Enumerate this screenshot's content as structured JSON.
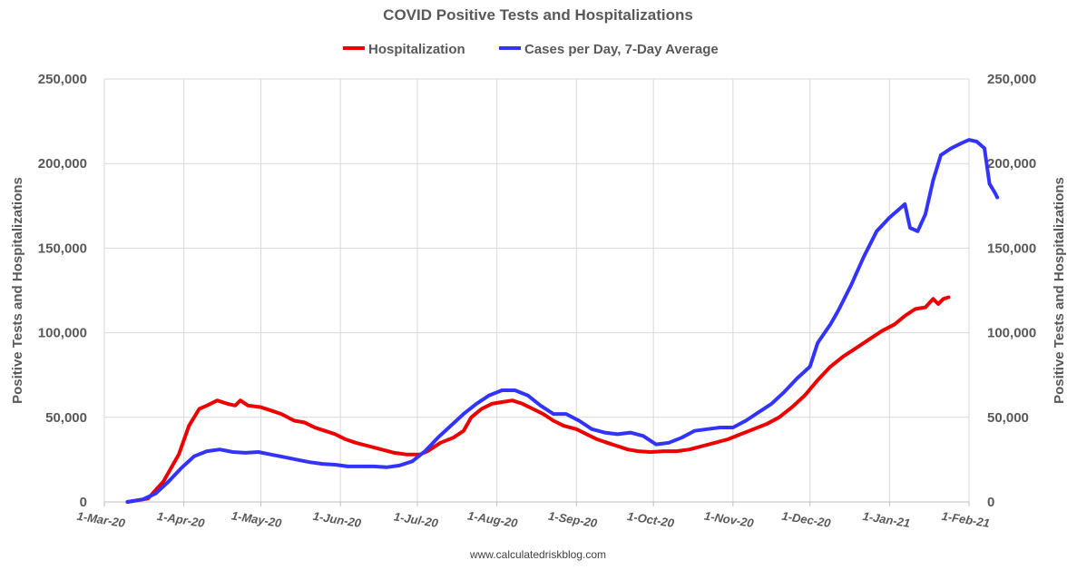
{
  "chart_data": {
    "type": "line",
    "title": "COVID Positive Tests and Hospitalizations",
    "ylabel_left": "Positive Tests and Hospitalizations",
    "ylabel_right": "Positive Tests and Hospitalizations",
    "ylim": [
      0,
      250000
    ],
    "y_ticks": [
      0,
      50000,
      100000,
      150000,
      200000,
      250000
    ],
    "y_tick_labels": [
      "0",
      "50,000",
      "100,000",
      "150,000",
      "200,000",
      "250,000"
    ],
    "x_range": [
      "2020-03-01",
      "2021-02-01"
    ],
    "x_tick_dates": [
      "2020-03-01",
      "2020-04-01",
      "2020-05-01",
      "2020-06-01",
      "2020-07-01",
      "2020-08-01",
      "2020-09-01",
      "2020-10-01",
      "2020-11-01",
      "2020-12-01",
      "2021-01-01",
      "2021-02-01"
    ],
    "x_tick_labels": [
      "1-Mar-20",
      "1-Apr-20",
      "1-May-20",
      "1-Jun-20",
      "1-Jul-20",
      "1-Aug-20",
      "1-Sep-20",
      "1-Oct-20",
      "1-Nov-20",
      "1-Dec-20",
      "1-Jan-21",
      "1-Feb-21"
    ],
    "grid": true,
    "legend_position": "top-center",
    "series": [
      {
        "name": "Hospitalization",
        "color": "#ee0000",
        "points": [
          [
            "2020-03-10",
            0
          ],
          [
            "2020-03-18",
            2000
          ],
          [
            "2020-03-24",
            12000
          ],
          [
            "2020-03-30",
            28000
          ],
          [
            "2020-04-03",
            45000
          ],
          [
            "2020-04-07",
            55000
          ],
          [
            "2020-04-10",
            57000
          ],
          [
            "2020-04-14",
            60000
          ],
          [
            "2020-04-18",
            58000
          ],
          [
            "2020-04-21",
            57000
          ],
          [
            "2020-04-23",
            60000
          ],
          [
            "2020-04-26",
            57000
          ],
          [
            "2020-05-01",
            56000
          ],
          [
            "2020-05-05",
            54000
          ],
          [
            "2020-05-09",
            52000
          ],
          [
            "2020-05-14",
            48000
          ],
          [
            "2020-05-18",
            47000
          ],
          [
            "2020-05-22",
            44000
          ],
          [
            "2020-05-26",
            42000
          ],
          [
            "2020-05-30",
            40000
          ],
          [
            "2020-06-03",
            37000
          ],
          [
            "2020-06-07",
            35000
          ],
          [
            "2020-06-12",
            33000
          ],
          [
            "2020-06-17",
            31000
          ],
          [
            "2020-06-22",
            29000
          ],
          [
            "2020-06-27",
            28000
          ],
          [
            "2020-07-02",
            28000
          ],
          [
            "2020-07-05",
            30000
          ],
          [
            "2020-07-10",
            35000
          ],
          [
            "2020-07-15",
            38000
          ],
          [
            "2020-07-19",
            42000
          ],
          [
            "2020-07-22",
            50000
          ],
          [
            "2020-07-26",
            55000
          ],
          [
            "2020-07-30",
            58000
          ],
          [
            "2020-08-03",
            59000
          ],
          [
            "2020-08-07",
            60000
          ],
          [
            "2020-08-11",
            58000
          ],
          [
            "2020-08-15",
            55000
          ],
          [
            "2020-08-19",
            52000
          ],
          [
            "2020-08-23",
            48000
          ],
          [
            "2020-08-27",
            45000
          ],
          [
            "2020-09-01",
            43000
          ],
          [
            "2020-09-05",
            40000
          ],
          [
            "2020-09-09",
            37000
          ],
          [
            "2020-09-13",
            35000
          ],
          [
            "2020-09-17",
            33000
          ],
          [
            "2020-09-21",
            31000
          ],
          [
            "2020-09-25",
            30000
          ],
          [
            "2020-09-30",
            29500
          ],
          [
            "2020-10-05",
            30000
          ],
          [
            "2020-10-10",
            30000
          ],
          [
            "2020-10-15",
            31000
          ],
          [
            "2020-10-20",
            33000
          ],
          [
            "2020-10-25",
            35000
          ],
          [
            "2020-10-30",
            37000
          ],
          [
            "2020-11-04",
            40000
          ],
          [
            "2020-11-09",
            43000
          ],
          [
            "2020-11-14",
            46000
          ],
          [
            "2020-11-19",
            50000
          ],
          [
            "2020-11-24",
            56000
          ],
          [
            "2020-11-29",
            63000
          ],
          [
            "2020-12-04",
            72000
          ],
          [
            "2020-12-09",
            80000
          ],
          [
            "2020-12-14",
            86000
          ],
          [
            "2020-12-19",
            91000
          ],
          [
            "2020-12-24",
            96000
          ],
          [
            "2020-12-29",
            101000
          ],
          [
            "2021-01-03",
            105000
          ],
          [
            "2021-01-07",
            110000
          ],
          [
            "2021-01-11",
            114000
          ],
          [
            "2021-01-15",
            115000
          ],
          [
            "2021-01-18",
            120000
          ],
          [
            "2021-01-20",
            117000
          ],
          [
            "2021-01-22",
            120000
          ],
          [
            "2021-01-24",
            121000
          ]
        ]
      },
      {
        "name": "Cases per Day, 7-Day Average",
        "color": "#3333ff",
        "points": [
          [
            "2020-03-10",
            0
          ],
          [
            "2020-03-16",
            1500
          ],
          [
            "2020-03-21",
            5000
          ],
          [
            "2020-03-26",
            12000
          ],
          [
            "2020-03-31",
            20000
          ],
          [
            "2020-04-05",
            27000
          ],
          [
            "2020-04-10",
            30000
          ],
          [
            "2020-04-15",
            31000
          ],
          [
            "2020-04-20",
            29500
          ],
          [
            "2020-04-25",
            29000
          ],
          [
            "2020-04-30",
            29500
          ],
          [
            "2020-05-05",
            28000
          ],
          [
            "2020-05-10",
            26500
          ],
          [
            "2020-05-15",
            25000
          ],
          [
            "2020-05-20",
            23500
          ],
          [
            "2020-05-25",
            22500
          ],
          [
            "2020-05-30",
            22000
          ],
          [
            "2020-06-04",
            21000
          ],
          [
            "2020-06-09",
            21000
          ],
          [
            "2020-06-14",
            21000
          ],
          [
            "2020-06-19",
            20500
          ],
          [
            "2020-06-24",
            21500
          ],
          [
            "2020-06-29",
            24000
          ],
          [
            "2020-07-04",
            30000
          ],
          [
            "2020-07-09",
            38000
          ],
          [
            "2020-07-14",
            45000
          ],
          [
            "2020-07-19",
            52000
          ],
          [
            "2020-07-24",
            58000
          ],
          [
            "2020-07-29",
            63000
          ],
          [
            "2020-08-03",
            66000
          ],
          [
            "2020-08-08",
            66000
          ],
          [
            "2020-08-13",
            63000
          ],
          [
            "2020-08-18",
            57000
          ],
          [
            "2020-08-23",
            52000
          ],
          [
            "2020-08-28",
            52000
          ],
          [
            "2020-09-02",
            48000
          ],
          [
            "2020-09-07",
            43000
          ],
          [
            "2020-09-12",
            41000
          ],
          [
            "2020-09-17",
            40000
          ],
          [
            "2020-09-22",
            41000
          ],
          [
            "2020-09-27",
            39000
          ],
          [
            "2020-10-02",
            34000
          ],
          [
            "2020-10-07",
            35000
          ],
          [
            "2020-10-12",
            38000
          ],
          [
            "2020-10-17",
            42000
          ],
          [
            "2020-10-22",
            43000
          ],
          [
            "2020-10-27",
            44000
          ],
          [
            "2020-11-01",
            44000
          ],
          [
            "2020-11-06",
            48000
          ],
          [
            "2020-11-11",
            53000
          ],
          [
            "2020-11-16",
            58000
          ],
          [
            "2020-11-21",
            65000
          ],
          [
            "2020-11-26",
            73000
          ],
          [
            "2020-12-01",
            80000
          ],
          [
            "2020-12-04",
            94000
          ],
          [
            "2020-12-09",
            105000
          ],
          [
            "2020-12-12",
            113000
          ],
          [
            "2020-12-17",
            128000
          ],
          [
            "2020-12-22",
            145000
          ],
          [
            "2020-12-27",
            160000
          ],
          [
            "2021-01-01",
            168000
          ],
          [
            "2021-01-04",
            172000
          ],
          [
            "2021-01-07",
            176000
          ],
          [
            "2021-01-09",
            162000
          ],
          [
            "2021-01-12",
            160000
          ],
          [
            "2021-01-15",
            170000
          ],
          [
            "2021-01-18",
            190000
          ],
          [
            "2021-01-21",
            205000
          ],
          [
            "2021-01-25",
            209000
          ],
          [
            "2021-01-29",
            212000
          ],
          [
            "2021-02-01",
            214000
          ],
          [
            "2021-02-04",
            213000
          ],
          [
            "2021-02-07",
            209000
          ],
          [
            "2021-02-09",
            188000
          ],
          [
            "2021-02-11",
            183000
          ],
          [
            "2021-02-12",
            180000
          ]
        ]
      }
    ],
    "source": "www.calculatedriskblog.com"
  }
}
